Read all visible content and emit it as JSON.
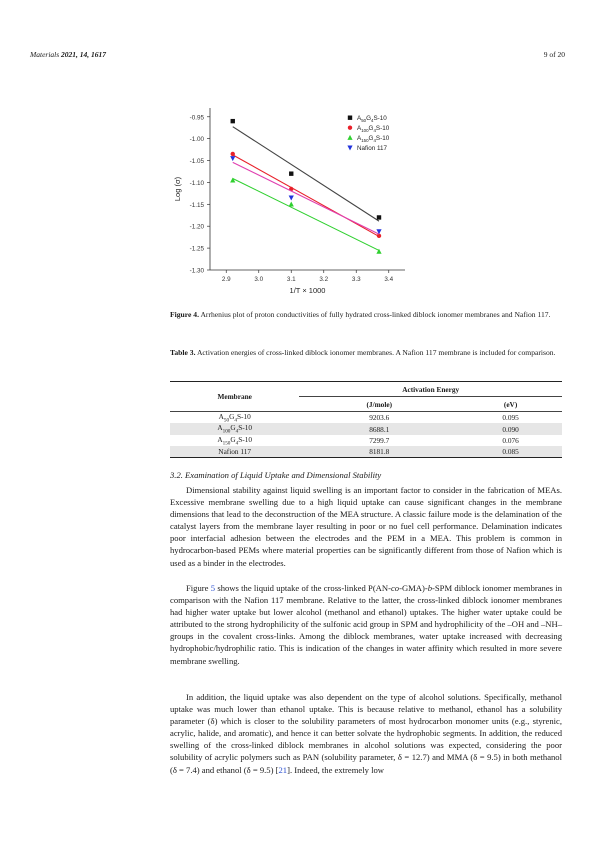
{
  "header": {
    "journal": "Materials",
    "year_vol_issue": "2021, 14, 1617",
    "page": "9 of 20"
  },
  "chart_data": {
    "type": "scatter",
    "xlabel": "1/T × 1000",
    "ylabel": "Log (σ)",
    "xlim": [
      2.85,
      3.45
    ],
    "ylim": [
      -1.3,
      -0.93
    ],
    "xticks": [
      "2.9",
      "3.0",
      "3.1",
      "3.2",
      "3.3",
      "3.4"
    ],
    "yticks": [
      "-0.95",
      "-1.00",
      "-1.05",
      "-1.10",
      "-1.15",
      "-1.20",
      "-1.25",
      "-1.30"
    ],
    "legend_position": "top-right",
    "series": [
      {
        "name_base": "A",
        "name_sub": "50",
        "name_mid": "G",
        "name_sub2": "4",
        "name_tail": "S-10",
        "color": "#111111",
        "marker": "square",
        "line_color": "#444444",
        "x": [
          2.92,
          3.1,
          3.37
        ],
        "y": [
          -0.96,
          -1.08,
          -1.18
        ]
      },
      {
        "name_base": "A",
        "name_sub": "100",
        "name_mid": "G",
        "name_sub2": "4",
        "name_tail": "S-10",
        "color": "#e8202a",
        "marker": "circle",
        "line_color": "#e8202a",
        "x": [
          2.92,
          3.1,
          3.37
        ],
        "y": [
          -1.035,
          -1.115,
          -1.222
        ]
      },
      {
        "name_base": "A",
        "name_sub": "150",
        "name_mid": "G",
        "name_sub2": "4",
        "name_tail": "S-10",
        "color": "#2fd02f",
        "marker": "triangle-up",
        "line_color": "#2fd02f",
        "x": [
          2.92,
          3.1,
          3.37
        ],
        "y": [
          -1.095,
          -1.15,
          -1.258
        ]
      },
      {
        "name_base": "Nafion 117",
        "name_sub": "",
        "name_mid": "",
        "name_sub2": "",
        "name_tail": "",
        "color": "#2233dd",
        "marker": "triangle-down",
        "line_color": "#e040b0",
        "x": [
          2.92,
          3.1,
          3.37
        ],
        "y": [
          -1.045,
          -1.135,
          -1.212
        ]
      }
    ]
  },
  "figure_caption": {
    "label": "Figure 4.",
    "text": " Arrhenius plot of proton conductivities of fully hydrated cross-linked diblock ionomer membranes and Nafion 117."
  },
  "table_caption": {
    "label": "Table 3.",
    "text": " Activation energies of cross-linked diblock ionomer membranes. A Nafion 117 membrane is included for comparison."
  },
  "table": {
    "col_membrane": "Membrane",
    "col_group": "Activation Energy",
    "unit1": "(J/mole)",
    "unit2": "(eV)",
    "rows": [
      {
        "a": "A",
        "s1": "50",
        "g": "G",
        "s2": "4",
        "t": "S-10",
        "j": "9203.6",
        "ev": "0.095"
      },
      {
        "a": "A",
        "s1": "100",
        "g": "G",
        "s2": "4",
        "t": "S-10",
        "j": "8688.1",
        "ev": "0.090"
      },
      {
        "a": "A",
        "s1": "150",
        "g": "G",
        "s2": "4",
        "t": "S-10",
        "j": "7299.7",
        "ev": "0.076"
      },
      {
        "a": "Nafion 117",
        "s1": "",
        "g": "",
        "s2": "",
        "t": "",
        "j": "8181.8",
        "ev": "0.085"
      }
    ]
  },
  "section_title": "3.2. Examination of Liquid Uptake and Dimensional Stability",
  "paragraphs": {
    "p1": "Dimensional stability against liquid swelling is an important factor to consider in the fabrication of MEAs. Excessive membrane swelling due to a high liquid uptake can cause significant changes in the membrane dimensions that lead to the deconstruction of the MEA structure. A classic failure mode is the delamination of the catalyst layers from the membrane layer resulting in poor or no fuel cell performance. Delamination indicates poor interfacial adhesion between the electrodes and the PEM in a MEA. This problem is common in hydrocarbon-based PEMs where material properties can be significantly different from those of Nafion which is used as a binder in the electrodes.",
    "p2_a": "Figure ",
    "p2_link": "5",
    "p2_b": " shows the liquid uptake of the cross-linked P(AN-",
    "p2_co": "co",
    "p2_c": "-GMA)-",
    "p2_bb": "b",
    "p2_d": "-SPM diblock ionomer membranes in comparison with the Nafion 117 membrane. Relative to the latter, the cross-linked diblock ionomer membranes had higher water uptake but lower alcohol (methanol and ethanol) uptakes. The higher water uptake could be attributed to the strong hydrophilicity of the sulfonic acid group in SPM and hydrophilicity of the –OH and –NH– groups in the covalent cross-links. Among the diblock membranes, water uptake increased with decreasing hydrophobic/hydrophilic ratio. This is indication of the changes in water affinity which resulted in more severe membrane swelling.",
    "p3_a": "In addition, the liquid uptake was also dependent on the type of alcohol solutions. Specifically, methanol uptake was much lower than ethanol uptake. This is because relative to methanol, ethanol has a solubility parameter (δ) which is closer to the solubility parameters of most hydrocarbon monomer units (e.g., styrenic, acrylic, halide, and aromatic), and hence it can better solvate the hydrophobic segments. In addition, the reduced swelling of the cross-linked diblock membranes in alcohol solutions was expected, considering the poor solubility of acrylic polymers such as PAN (solubility parameter, δ = 12.7) and MMA (δ = 9.5) in both methanol (δ = 7.4) and ethanol (δ = 9.5) [",
    "p3_link": "21",
    "p3_b": "]. Indeed, the extremely low"
  }
}
